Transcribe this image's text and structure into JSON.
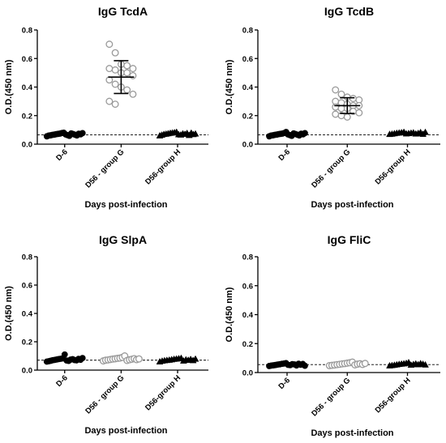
{
  "chart_data": [
    {
      "type": "scatter",
      "title": "IgG TcdA",
      "xlabel": "Days post-infection",
      "ylabel": "O.D.(450 nm)",
      "categories": [
        "D-6",
        "D56 - group G",
        "D56-group H"
      ],
      "ylim": [
        0,
        0.8
      ],
      "yticks": [
        "0.0",
        "0.2",
        "0.4",
        "0.6",
        "0.8"
      ],
      "cutoff": 0.065,
      "series": [
        {
          "category": "D-6",
          "marker": "circle-filled",
          "values": [
            0.055,
            0.06,
            0.062,
            0.065,
            0.067,
            0.07,
            0.072,
            0.074,
            0.078,
            0.08,
            0.068,
            0.063,
            0.058,
            0.075,
            0.071,
            0.066,
            0.061,
            0.073,
            0.069,
            0.077
          ]
        },
        {
          "category": "D56 - group G",
          "marker": "circle-open",
          "values": [
            0.7,
            0.64,
            0.56,
            0.55,
            0.53,
            0.53,
            0.52,
            0.5,
            0.5,
            0.48,
            0.45,
            0.42,
            0.4,
            0.38,
            0.35,
            0.3,
            0.28
          ],
          "mean": 0.47,
          "sd_low": 0.355,
          "sd_high": 0.585
        },
        {
          "category": "D56-group H",
          "marker": "triangle-filled",
          "values": [
            0.06,
            0.065,
            0.07,
            0.072,
            0.075,
            0.078,
            0.08,
            0.082,
            0.085,
            0.068,
            0.066,
            0.074,
            0.071,
            0.077,
            0.063,
            0.079,
            0.069,
            0.073
          ]
        }
      ]
    },
    {
      "type": "scatter",
      "title": "IgG TcdB",
      "xlabel": "Days post-infection",
      "ylabel": "O.D.(450 nm)",
      "categories": [
        "D-6",
        "D56 - group G",
        "D56-group H"
      ],
      "ylim": [
        0,
        0.8
      ],
      "yticks": [
        "0.0",
        "0.2",
        "0.4",
        "0.6",
        "0.8"
      ],
      "cutoff": 0.065,
      "series": [
        {
          "category": "D-6",
          "marker": "circle-filled",
          "values": [
            0.055,
            0.06,
            0.062,
            0.065,
            0.067,
            0.07,
            0.072,
            0.074,
            0.078,
            0.085,
            0.068,
            0.063,
            0.058,
            0.075,
            0.071,
            0.066,
            0.061,
            0.073,
            0.069,
            0.077
          ]
        },
        {
          "category": "D56 - group G",
          "marker": "circle-open",
          "values": [
            0.38,
            0.35,
            0.33,
            0.32,
            0.31,
            0.3,
            0.29,
            0.28,
            0.27,
            0.27,
            0.26,
            0.25,
            0.25,
            0.23,
            0.22,
            0.21,
            0.2,
            0.19
          ],
          "mean": 0.27,
          "sd_low": 0.215,
          "sd_high": 0.325
        },
        {
          "category": "D56-group H",
          "marker": "triangle-filled",
          "values": [
            0.07,
            0.072,
            0.075,
            0.078,
            0.08,
            0.082,
            0.085,
            0.074,
            0.076,
            0.079,
            0.081,
            0.073,
            0.077,
            0.083,
            0.071,
            0.084
          ]
        }
      ]
    },
    {
      "type": "scatter",
      "title": "IgG SlpA",
      "xlabel": "Days post-infection",
      "ylabel": "O.D.(450 nm)",
      "categories": [
        "D-6",
        "D56 - group G",
        "D56-group H"
      ],
      "ylim": [
        0,
        0.8
      ],
      "yticks": [
        "0.0",
        "0.2",
        "0.4",
        "0.6",
        "0.8"
      ],
      "cutoff": 0.07,
      "series": [
        {
          "category": "D-6",
          "marker": "circle-filled",
          "values": [
            0.06,
            0.063,
            0.066,
            0.07,
            0.072,
            0.075,
            0.078,
            0.08,
            0.083,
            0.11,
            0.068,
            0.065,
            0.074,
            0.077,
            0.071,
            0.069,
            0.079,
            0.073,
            0.085
          ]
        },
        {
          "category": "D56 - group G",
          "marker": "circle-open",
          "values": [
            0.065,
            0.07,
            0.072,
            0.075,
            0.078,
            0.08,
            0.083,
            0.085,
            0.09,
            0.1,
            0.068,
            0.073,
            0.077,
            0.081,
            0.074,
            0.079
          ]
        },
        {
          "category": "D56-group H",
          "marker": "triangle-filled",
          "values": [
            0.06,
            0.065,
            0.068,
            0.07,
            0.072,
            0.075,
            0.078,
            0.08,
            0.082,
            0.085,
            0.066,
            0.074,
            0.071,
            0.077,
            0.069,
            0.079
          ]
        }
      ]
    },
    {
      "type": "scatter",
      "title": "IgG FliC",
      "xlabel": "Days post-infection",
      "ylabel": "O.D.(450 nm)",
      "categories": [
        "D-6",
        "D56 - group G",
        "D56-group H"
      ],
      "ylim": [
        0,
        0.8
      ],
      "yticks": [
        "0.0",
        "0.2",
        "0.4",
        "0.6",
        "0.8"
      ],
      "cutoff": 0.055,
      "series": [
        {
          "category": "D-6",
          "marker": "circle-filled",
          "values": [
            0.045,
            0.048,
            0.05,
            0.052,
            0.055,
            0.057,
            0.06,
            0.062,
            0.065,
            0.053,
            0.051,
            0.058,
            0.056,
            0.049,
            0.061,
            0.054,
            0.059,
            0.047
          ]
        },
        {
          "category": "D56 - group G",
          "marker": "circle-open",
          "values": [
            0.048,
            0.05,
            0.052,
            0.055,
            0.057,
            0.06,
            0.062,
            0.065,
            0.068,
            0.072,
            0.053,
            0.058,
            0.061,
            0.056,
            0.063
          ]
        },
        {
          "category": "D56-group H",
          "marker": "triangle-filled",
          "values": [
            0.048,
            0.05,
            0.052,
            0.055,
            0.058,
            0.06,
            0.062,
            0.065,
            0.07,
            0.053,
            0.057,
            0.061,
            0.056,
            0.063,
            0.059,
            0.054
          ]
        }
      ]
    }
  ]
}
